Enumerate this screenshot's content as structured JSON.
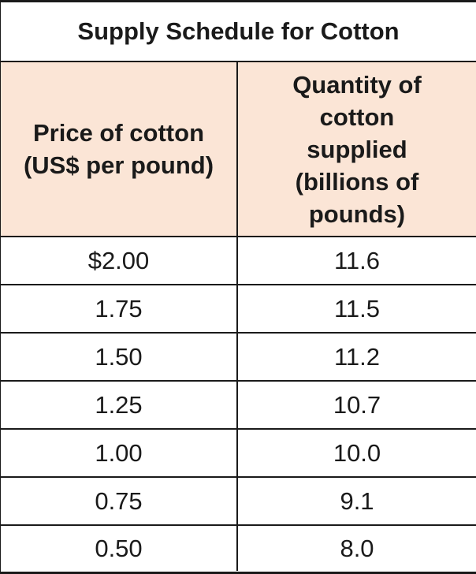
{
  "title": "Supply Schedule for Cotton",
  "columns": [
    "Price of cotton (US$ per pound)",
    "Quantity of cotton supplied (billions of pounds)"
  ],
  "rows": [
    [
      "$2.00",
      "11.6"
    ],
    [
      "1.75",
      "11.5"
    ],
    [
      "1.50",
      "11.2"
    ],
    [
      "1.25",
      "10.7"
    ],
    [
      "1.00",
      "10.0"
    ],
    [
      "0.75",
      "9.1"
    ],
    [
      "0.50",
      "8.0"
    ]
  ],
  "colors": {
    "header_background": "#fbe5d6",
    "border": "#1a1a1a",
    "text": "#1a1a1a"
  }
}
